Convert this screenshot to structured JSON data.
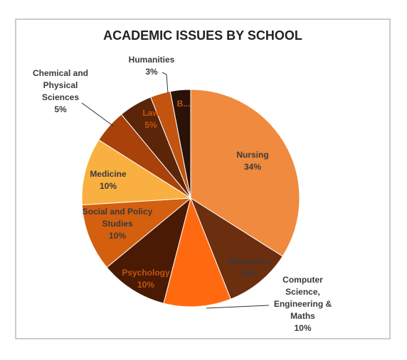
{
  "chart_data": {
    "type": "pie",
    "title": "ACADEMIC ISSUES BY SCHOOL",
    "categories": [
      "Nursing",
      "Education",
      "Computer Science, Engineering & Maths",
      "Psychology",
      "Social and Policy Studies",
      "Medicine",
      "Chemical and Physical Sciences",
      "Law",
      "Humanities",
      "B..."
    ],
    "values": [
      34,
      10,
      10,
      10,
      10,
      10,
      5,
      5,
      3,
      3
    ],
    "value_labels": [
      "34%",
      "10%",
      "10%",
      "10%",
      "10%",
      "10%",
      "5%",
      "5%",
      "3%",
      null
    ],
    "colors": [
      "#f08a3e",
      "#6b2e0e",
      "#ff6a10",
      "#4a1a05",
      "#d35f0f",
      "#f9b040",
      "#a8420a",
      "#5a2508",
      "#c25410",
      "#2a1208"
    ]
  }
}
